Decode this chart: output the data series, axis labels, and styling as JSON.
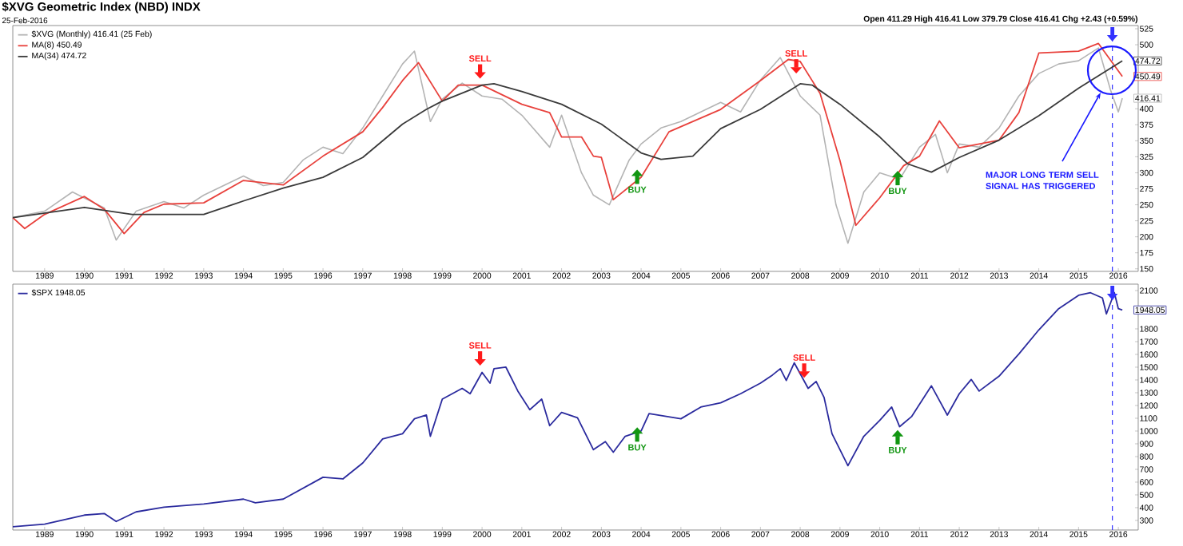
{
  "chart_data": [
    {
      "type": "line",
      "title": "$XVG Geometric Index (NBD) INDX",
      "subtitle": "25-Feb-2016",
      "legend": "top left",
      "xlim": [
        1988.2,
        2016.5
      ],
      "xticks": [
        1989,
        1990,
        1991,
        1992,
        1993,
        1994,
        1995,
        1996,
        1997,
        1998,
        1999,
        2000,
        2001,
        2002,
        2003,
        2004,
        2005,
        2006,
        2007,
        2008,
        2009,
        2010,
        2011,
        2012,
        2013,
        2014,
        2015,
        2016
      ],
      "ylim": [
        146,
        530
      ],
      "yticks": [
        150,
        175,
        200,
        225,
        250,
        275,
        300,
        325,
        350,
        375,
        400,
        500,
        525
      ],
      "series": [
        {
          "name": "$XVG (Monthly) 416.41 (25 Feb)",
          "color": "#b4b4b4",
          "x": [
            1988.2,
            1989,
            1989.7,
            1990.5,
            1990.8,
            1991.3,
            1992,
            1992.5,
            1993,
            1994,
            1994.5,
            1995,
            1995.5,
            1996,
            1996.5,
            1997,
            1997.5,
            1998,
            1998.3,
            1998.7,
            1999,
            1999.5,
            2000,
            2000.5,
            2001,
            2001.7,
            2002,
            2002.5,
            2002.8,
            2003.2,
            2003.7,
            2004,
            2004.5,
            2005,
            2006,
            2006.5,
            2007,
            2007.5,
            2008,
            2008.5,
            2008.9,
            2009.2,
            2009.6,
            2010,
            2010.5,
            2011,
            2011.4,
            2011.7,
            2012,
            2012.5,
            2013,
            2013.5,
            2014,
            2014.5,
            2015,
            2015.5,
            2015.8,
            2016,
            2016.1
          ],
          "values": [
            230,
            240,
            270,
            245,
            195,
            240,
            255,
            245,
            265,
            295,
            280,
            285,
            320,
            340,
            330,
            370,
            420,
            470,
            490,
            380,
            415,
            440,
            420,
            415,
            390,
            340,
            390,
            300,
            265,
            250,
            320,
            345,
            370,
            380,
            410,
            395,
            445,
            480,
            420,
            390,
            250,
            190,
            270,
            300,
            290,
            340,
            360,
            300,
            345,
            340,
            370,
            420,
            455,
            470,
            475,
            495,
            430,
            395,
            416.41
          ],
          "value_labels": [
            null,
            null,
            null,
            null,
            null,
            null,
            null,
            null,
            null,
            null,
            null,
            null,
            null,
            null,
            null,
            null,
            null,
            null,
            null,
            null,
            null,
            null,
            null,
            null,
            null,
            null,
            null,
            null,
            null,
            null,
            null,
            null,
            null,
            null,
            null,
            null,
            null,
            null,
            null,
            null,
            null,
            null,
            null,
            null,
            null,
            null,
            null,
            null,
            null,
            null,
            null,
            null,
            null,
            null,
            null,
            null,
            null,
            null,
            "416.41"
          ]
        },
        {
          "name": "MA(8) 450.49",
          "color": "#e8413c",
          "x": [
            1988.2,
            1988.5,
            1989,
            1990,
            1990.5,
            1991,
            1991.5,
            1992,
            1993,
            1994,
            1995,
            1996,
            1997,
            1997.5,
            1998,
            1998.4,
            1999,
            1999.4,
            2000,
            2001,
            2001.7,
            2002,
            2002.5,
            2002.8,
            2003,
            2003.3,
            2004,
            2004.7,
            2006,
            2007,
            2007.7,
            2008,
            2008.5,
            2009,
            2009.4,
            2010,
            2010.6,
            2011,
            2011.5,
            2012,
            2013,
            2013.5,
            2014,
            2015,
            2015.5,
            2016.1
          ],
          "values": [
            230,
            213,
            235,
            263,
            243,
            205,
            238,
            251,
            253,
            288,
            281,
            326,
            364,
            402,
            444,
            472,
            412,
            437,
            437,
            407,
            394,
            356,
            356,
            326,
            324,
            258,
            293,
            364,
            399,
            444,
            477,
            474,
            424,
            319,
            218,
            261,
            311,
            326,
            381,
            339,
            351,
            394,
            487,
            490,
            502,
            450.49
          ],
          "value_labels": [
            null,
            null,
            null,
            null,
            null,
            null,
            null,
            null,
            null,
            null,
            null,
            null,
            null,
            null,
            null,
            null,
            null,
            null,
            null,
            null,
            null,
            null,
            null,
            null,
            null,
            null,
            null,
            null,
            null,
            null,
            null,
            null,
            null,
            null,
            null,
            null,
            null,
            null,
            null,
            null,
            null,
            null,
            null,
            null,
            null,
            "450.49"
          ]
        },
        {
          "name": "MA(34) 474.72",
          "color": "#3a3a3a",
          "x": [
            1988.2,
            1990,
            1991.2,
            1992,
            1993,
            1994,
            1995,
            1996,
            1997,
            1998,
            1998.6,
            1999,
            2000,
            2000.3,
            2001,
            2002,
            2003,
            2004,
            2004.5,
            2005.3,
            2006,
            2007,
            2008,
            2008.3,
            2009,
            2010,
            2010.7,
            2011.3,
            2012,
            2013,
            2014,
            2015,
            2016.1
          ],
          "values": [
            230,
            246,
            235,
            235,
            235,
            256,
            276,
            293,
            324,
            376,
            399,
            412,
            437,
            439,
            427,
            407,
            376,
            331,
            321,
            326,
            369,
            399,
            439,
            437,
            407,
            356,
            314,
            301,
            324,
            351,
            389,
            432,
            474.72
          ],
          "value_labels": [
            null,
            null,
            null,
            null,
            null,
            null,
            null,
            null,
            null,
            null,
            null,
            null,
            null,
            null,
            null,
            null,
            null,
            null,
            null,
            null,
            null,
            null,
            null,
            null,
            null,
            null,
            null,
            null,
            null,
            null,
            null,
            null,
            "474.72"
          ]
        }
      ],
      "ref_lines": [
        {
          "axis": "x",
          "value": 2015.85,
          "color": "#3333ff",
          "line_style": "dashed"
        }
      ],
      "annotations": [
        "Open 411.29 High 416.41 Low 379.79 Close 416.41 Chg +2.43 (+0.59%)",
        {
          "text": "SELL",
          "x": 1999.95,
          "y": 447
        },
        {
          "text": "BUY",
          "x": 2003.9,
          "y": 305
        },
        {
          "text": "SELL",
          "x": 2007.9,
          "y": 455
        },
        {
          "text": "BUY",
          "x": 2010.45,
          "y": 303
        },
        "MAJOR LONG TERM SELL SIGNAL HAS TRIGGERED"
      ]
    },
    {
      "type": "line",
      "legend": "top left",
      "xlim": [
        1988.2,
        2016.5
      ],
      "xticks": [
        1989,
        1990,
        1991,
        1992,
        1993,
        1994,
        1995,
        1996,
        1997,
        1998,
        1999,
        2000,
        2001,
        2002,
        2003,
        2004,
        2005,
        2006,
        2007,
        2008,
        2009,
        2010,
        2011,
        2012,
        2013,
        2014,
        2015,
        2016
      ],
      "ylim": [
        225,
        2150
      ],
      "yticks": [
        300,
        400,
        500,
        600,
        700,
        800,
        900,
        1000,
        1100,
        1200,
        1300,
        1400,
        1500,
        1600,
        1700,
        1800,
        2100
      ],
      "series": [
        {
          "name": "$SPX 1948.05",
          "color": "#2b2b9e",
          "x": [
            1988.2,
            1989,
            1990,
            1990.5,
            1990.8,
            1991.3,
            1992,
            1993,
            1994,
            1994.3,
            1995,
            1996,
            1996.5,
            1997,
            1997.5,
            1998,
            1998.3,
            1998.6,
            1998.7,
            1999,
            1999.5,
            1999.7,
            2000,
            2000.2,
            2000.3,
            2000.6,
            2000.9,
            2001.2,
            2001.5,
            2001.7,
            2002,
            2002.4,
            2002.8,
            2003.1,
            2003.3,
            2003.6,
            2004,
            2004.2,
            2005,
            2005.5,
            2006,
            2006.5,
            2007,
            2007.3,
            2007.5,
            2007.65,
            2007.85,
            2008.2,
            2008.4,
            2008.6,
            2008.8,
            2009.2,
            2009.6,
            2010,
            2010.3,
            2010.5,
            2010.8,
            2011.3,
            2011.7,
            2012,
            2012.3,
            2012.5,
            2013,
            2013.5,
            2014,
            2014.5,
            2015,
            2015.3,
            2015.6,
            2015.7,
            2015.9,
            2016,
            2016.1
          ],
          "values": [
            250,
            271,
            342,
            354,
            292,
            367,
            404,
            429,
            467,
            438,
            467,
            638,
            625,
            750,
            938,
            979,
            1096,
            1125,
            959,
            1250,
            1334,
            1292,
            1459,
            1375,
            1488,
            1500,
            1313,
            1167,
            1250,
            1042,
            1146,
            1104,
            854,
            917,
            834,
            959,
            1000,
            1137,
            1096,
            1188,
            1221,
            1292,
            1375,
            1438,
            1488,
            1396,
            1534,
            1334,
            1388,
            1263,
            979,
            729,
            959,
            1084,
            1188,
            1034,
            1113,
            1354,
            1125,
            1292,
            1404,
            1313,
            1429,
            1604,
            1792,
            1958,
            2063,
            2083,
            2042,
            1917,
            2083,
            1958,
            1948.05
          ],
          "value_labels": [
            null,
            null,
            null,
            null,
            null,
            null,
            null,
            null,
            null,
            null,
            null,
            null,
            null,
            null,
            null,
            null,
            null,
            null,
            null,
            null,
            null,
            null,
            null,
            null,
            null,
            null,
            null,
            null,
            null,
            null,
            null,
            null,
            null,
            null,
            null,
            null,
            null,
            null,
            null,
            null,
            null,
            null,
            null,
            null,
            null,
            null,
            null,
            null,
            null,
            null,
            null,
            null,
            null,
            null,
            null,
            null,
            null,
            null,
            null,
            null,
            null,
            null,
            null,
            null,
            null,
            null,
            null,
            null,
            null,
            null,
            null,
            null,
            "1948.05"
          ]
        }
      ],
      "ref_lines": [
        {
          "axis": "x",
          "value": 2015.85,
          "color": "#3333ff",
          "line_style": "dashed"
        }
      ],
      "annotations": [
        {
          "text": "SELL",
          "x": 1999.95,
          "y": 1512
        },
        {
          "text": "BUY",
          "x": 2003.9,
          "y": 1029
        },
        {
          "text": "SELL",
          "x": 2008.1,
          "y": 1417
        },
        {
          "text": "BUY",
          "x": 2010.45,
          "y": 1008
        }
      ]
    }
  ]
}
